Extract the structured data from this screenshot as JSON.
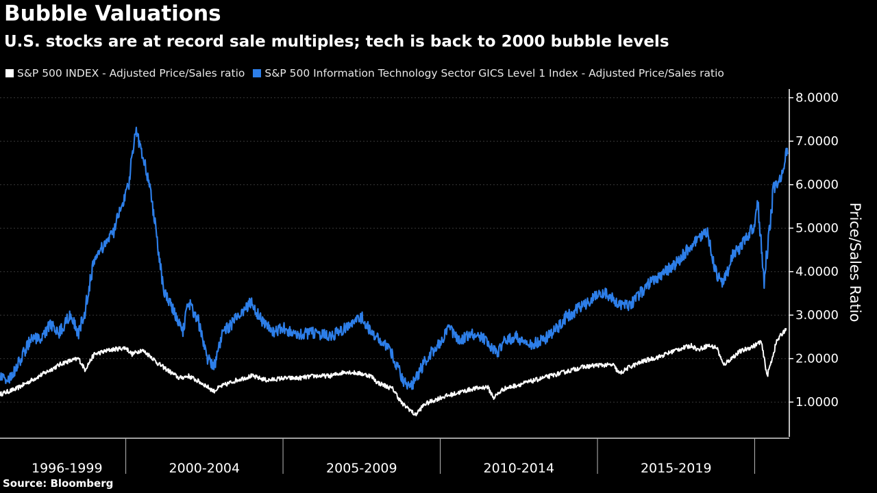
{
  "title": "Bubble Valuations",
  "subtitle": "U.S. stocks are at record sale multiples; tech is back to 2000 bubble levels",
  "source": "Source: Bloomberg",
  "colors": {
    "background": "#000000",
    "sp500": "#ffffff",
    "tech": "#2d7ee8",
    "axis": "#ffffff"
  },
  "chart_data": {
    "type": "line",
    "title": "Bubble Valuations",
    "subtitle": "U.S. stocks are at record sale multiples; tech is back to 2000 bubble levels",
    "ylabel": "Price/Sales Ratio",
    "ylim": [
      0.2,
      8.2
    ],
    "y_ticks": [
      "1.0000",
      "2.0000",
      "3.0000",
      "4.0000",
      "5.0000",
      "6.0000",
      "7.0000",
      "8.0000"
    ],
    "y_axis_position": "right",
    "x_period_labels": [
      "1996-1999",
      "2000-2004",
      "2005-2009",
      "2010-2014",
      "2015-2019"
    ],
    "xlim": [
      1996.0,
      2021.1
    ],
    "legend_position": "top-left",
    "series": [
      {
        "name": "S&P 500 INDEX - Adjusted Price/Sales ratio",
        "color": "#ffffff",
        "x": [
          1996.0,
          1996.5,
          1997.0,
          1997.5,
          1998.0,
          1998.5,
          1998.7,
          1999.0,
          1999.5,
          2000.0,
          2000.2,
          2000.5,
          2000.8,
          2001.0,
          2001.3,
          2001.7,
          2002.0,
          2002.5,
          2002.8,
          2003.0,
          2003.5,
          2004.0,
          2004.5,
          2005.0,
          2005.5,
          2006.0,
          2006.5,
          2007.0,
          2007.5,
          2007.8,
          2008.0,
          2008.5,
          2008.8,
          2009.0,
          2009.2,
          2009.5,
          2010.0,
          2010.5,
          2011.0,
          2011.5,
          2011.7,
          2012.0,
          2012.5,
          2013.0,
          2013.5,
          2014.0,
          2014.5,
          2015.0,
          2015.5,
          2015.7,
          2016.0,
          2016.5,
          2017.0,
          2017.5,
          2018.0,
          2018.2,
          2018.5,
          2018.8,
          2019.0,
          2019.5,
          2020.0,
          2020.2,
          2020.4,
          2020.7,
          2021.0
        ],
        "values": [
          1.18,
          1.3,
          1.5,
          1.7,
          1.9,
          2.0,
          1.75,
          2.1,
          2.2,
          2.25,
          2.1,
          2.2,
          2.05,
          1.9,
          1.75,
          1.55,
          1.6,
          1.4,
          1.25,
          1.35,
          1.5,
          1.6,
          1.5,
          1.55,
          1.55,
          1.6,
          1.6,
          1.7,
          1.65,
          1.6,
          1.45,
          1.3,
          0.95,
          0.85,
          0.7,
          0.95,
          1.1,
          1.2,
          1.3,
          1.35,
          1.1,
          1.3,
          1.4,
          1.5,
          1.6,
          1.7,
          1.8,
          1.85,
          1.85,
          1.65,
          1.8,
          1.95,
          2.05,
          2.2,
          2.3,
          2.2,
          2.3,
          2.25,
          1.85,
          2.15,
          2.3,
          2.4,
          1.6,
          2.4,
          2.7
        ]
      },
      {
        "name": "S&P 500 Information Technology Sector GICS Level 1 Index - Adjusted Price/Sales ratio",
        "color": "#2d7ee8",
        "x": [
          1996.0,
          1996.3,
          1996.6,
          1997.0,
          1997.3,
          1997.6,
          1997.9,
          1998.2,
          1998.5,
          1998.7,
          1999.0,
          1999.3,
          1999.6,
          1999.9,
          2000.1,
          2000.3,
          2000.5,
          2000.7,
          2000.9,
          2001.2,
          2001.5,
          2001.8,
          2002.0,
          2002.3,
          2002.6,
          2002.8,
          2003.1,
          2003.5,
          2004.0,
          2004.3,
          2004.7,
          2005.0,
          2005.5,
          2006.0,
          2006.5,
          2007.0,
          2007.5,
          2007.8,
          2008.0,
          2008.3,
          2008.6,
          2008.9,
          2009.1,
          2009.5,
          2010.0,
          2010.3,
          2010.6,
          2011.0,
          2011.3,
          2011.6,
          2011.8,
          2012.0,
          2012.4,
          2012.8,
          2013.2,
          2013.6,
          2014.0,
          2014.5,
          2015.0,
          2015.3,
          2015.6,
          2016.0,
          2016.3,
          2016.6,
          2017.0,
          2017.5,
          2018.0,
          2018.3,
          2018.5,
          2018.8,
          2019.0,
          2019.3,
          2019.6,
          2020.0,
          2020.1,
          2020.3,
          2020.6,
          2020.9,
          2021.0,
          2021.05
        ],
        "values": [
          1.6,
          1.5,
          1.9,
          2.5,
          2.4,
          2.8,
          2.6,
          3.0,
          2.6,
          3.1,
          4.3,
          4.6,
          4.9,
          5.6,
          6.0,
          7.3,
          6.8,
          6.2,
          5.3,
          3.6,
          3.1,
          2.6,
          3.3,
          2.9,
          2.0,
          1.8,
          2.6,
          2.9,
          3.3,
          2.9,
          2.6,
          2.7,
          2.55,
          2.6,
          2.5,
          2.7,
          2.95,
          2.6,
          2.45,
          2.3,
          1.9,
          1.4,
          1.4,
          1.9,
          2.4,
          2.7,
          2.4,
          2.55,
          2.5,
          2.3,
          2.1,
          2.4,
          2.5,
          2.3,
          2.4,
          2.6,
          2.95,
          3.2,
          3.45,
          3.5,
          3.3,
          3.2,
          3.45,
          3.7,
          3.9,
          4.2,
          4.6,
          4.8,
          4.9,
          3.9,
          3.7,
          4.4,
          4.6,
          5.1,
          5.6,
          3.8,
          5.9,
          6.3,
          6.8,
          6.7
        ]
      }
    ]
  }
}
